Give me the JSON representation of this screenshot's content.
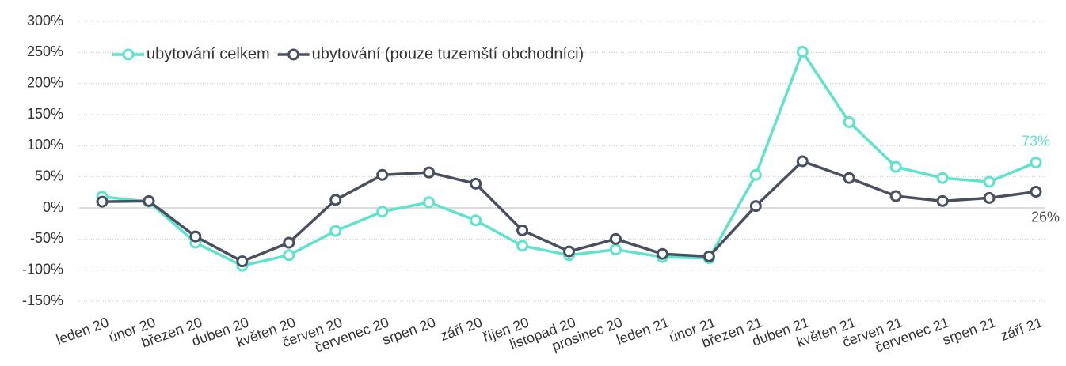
{
  "chart_data": {
    "type": "line",
    "categories": [
      "leden 20",
      "únor 20",
      "březen 20",
      "duben 20",
      "květen 20",
      "červen 20",
      "červenec 20",
      "srpen 20",
      "září 20",
      "říjen 20",
      "listopad 20",
      "prosinec 20",
      "leden 21",
      "únor 21",
      "březen 21",
      "duben 21",
      "květen 21",
      "červen 21",
      "červenec 21",
      "srpen 21",
      "září 21"
    ],
    "series": [
      {
        "name": "ubytování celkem",
        "color": "#5fe3cd",
        "values": [
          18,
          10,
          -56,
          -93,
          -76,
          -37,
          -6,
          9,
          -20,
          -61,
          -76,
          -67,
          -79,
          -81,
          53,
          251,
          138,
          66,
          48,
          42,
          73
        ],
        "value_labels": [
          null,
          null,
          null,
          null,
          null,
          null,
          null,
          null,
          null,
          null,
          null,
          null,
          null,
          null,
          null,
          null,
          null,
          null,
          null,
          null,
          "73%"
        ]
      },
      {
        "name": "ubytování (pouze tuzemští obchodníci)",
        "color": "#48505f",
        "values": [
          10,
          11,
          -46,
          -86,
          -56,
          13,
          53,
          57,
          39,
          -36,
          -70,
          -50,
          -74,
          -78,
          3,
          75,
          48,
          19,
          11,
          16,
          26
        ],
        "value_labels": [
          null,
          null,
          null,
          null,
          null,
          null,
          null,
          null,
          null,
          null,
          null,
          null,
          null,
          null,
          null,
          null,
          null,
          null,
          null,
          null,
          "26%"
        ]
      }
    ],
    "ylim": [
      -150,
      300
    ],
    "yticks": [
      {
        "value": -150,
        "label": "-150%"
      },
      {
        "value": -100,
        "label": "-100%"
      },
      {
        "value": -50,
        "label": "-50%"
      },
      {
        "value": 0,
        "label": "0%"
      },
      {
        "value": 50,
        "label": "50%"
      },
      {
        "value": 100,
        "label": "100%"
      },
      {
        "value": 150,
        "label": "150%"
      },
      {
        "value": 200,
        "label": "200%"
      },
      {
        "value": 250,
        "label": "250%"
      },
      {
        "value": 300,
        "label": "300%"
      }
    ],
    "grid": true,
    "legend": "top-left"
  }
}
